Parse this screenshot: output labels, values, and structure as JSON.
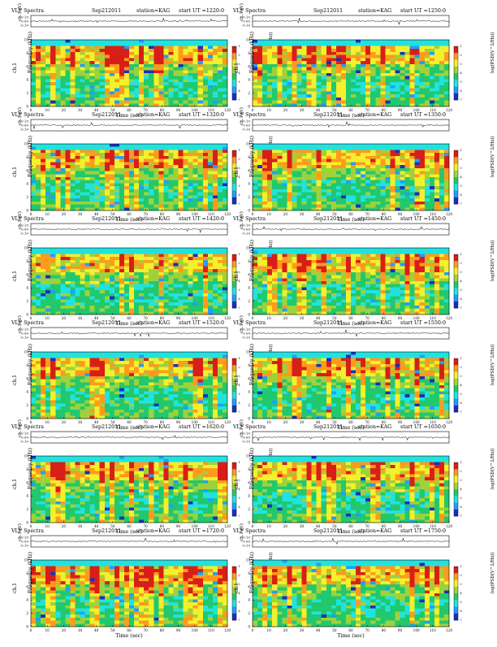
{
  "chart_data": {
    "type": "heatmap",
    "title": "VLF Spectra",
    "date": "Sep212011",
    "station": "station=KAG",
    "start_prefix": "start  UT  =",
    "top_ylabel": "ch.1 (V)",
    "main_ylabel": "Frequency (kHz)",
    "main_ylabel_side": "ch.1",
    "xlabel": "Time (sec)",
    "colorbar_label": "log(PSD(V^2/Hz))",
    "colorbar_ticks": [
      "-1",
      "-2",
      "-3",
      "-4",
      "-5",
      "-6",
      "-7"
    ],
    "xlim": [
      0,
      120
    ],
    "xticks": [
      0,
      10,
      20,
      30,
      40,
      50,
      60,
      70,
      80,
      90,
      100,
      110,
      120
    ],
    "ylim": [
      0,
      10
    ],
    "yticks": [
      0,
      2,
      4,
      6,
      8,
      10
    ],
    "top_ylim": [
      -0.1,
      0.1
    ],
    "top_yticks": [
      "0.10",
      "0.00",
      "-0.10"
    ],
    "color_scale": [
      "#1a2fbf",
      "#1f9fff",
      "#22e2e0",
      "#21c86d",
      "#9ed23b",
      "#f3f02c",
      "#ff9a1d",
      "#d81f17"
    ],
    "panels": [
      {
        "start_ut": "1220:0"
      },
      {
        "start_ut": "1250:0"
      },
      {
        "start_ut": "1320:0"
      },
      {
        "start_ut": "1350:0"
      },
      {
        "start_ut": "1420:0"
      },
      {
        "start_ut": "1450:0"
      },
      {
        "start_ut": "1520:0"
      },
      {
        "start_ut": "1550:0"
      },
      {
        "start_ut": "1620:0"
      },
      {
        "start_ut": "1650:0"
      },
      {
        "start_ut": "1720:0"
      },
      {
        "start_ut": "1750:0"
      }
    ]
  }
}
